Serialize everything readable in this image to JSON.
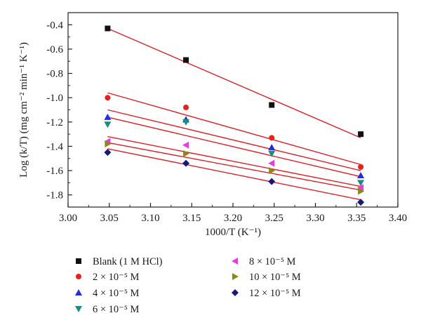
{
  "chart_data": {
    "type": "scatter",
    "xlabel": "1000/T (K⁻¹)",
    "ylabel": "Log (k/T) (mg cm⁻² min⁻¹ K⁻¹)",
    "xlim": [
      3.0,
      3.4
    ],
    "ylim": [
      -1.9,
      -0.3
    ],
    "x_ticks": [
      "3.00",
      "3.05",
      "3.10",
      "3.15",
      "3.20",
      "3.25",
      "3.30",
      "3.35",
      "3.40"
    ],
    "y_ticks": [
      "-0.4",
      "-0.6",
      "-0.8",
      "-1.0",
      "-1.2",
      "-1.4",
      "-1.6",
      "-1.8"
    ],
    "grid": false,
    "legend_position": "bottom",
    "fit_line_color": "#dd1f26",
    "series": [
      {
        "name": "Blank (1 M HCl)",
        "marker": "square",
        "color": "#111111",
        "x": [
          3.048,
          3.143,
          3.247,
          3.355
        ],
        "y": [
          -0.43,
          -0.69,
          -1.06,
          -1.3
        ],
        "fit": [
          [
            3.048,
            -0.43
          ],
          [
            3.355,
            -1.33
          ]
        ]
      },
      {
        "name": "2 × 10⁻⁵ M",
        "marker": "circle",
        "color": "#e8201c",
        "x": [
          3.048,
          3.143,
          3.247,
          3.355
        ],
        "y": [
          -1.0,
          -1.08,
          -1.33,
          -1.57
        ],
        "fit": [
          [
            3.048,
            -0.96
          ],
          [
            3.355,
            -1.55
          ]
        ]
      },
      {
        "name": "4 × 10⁻⁵ M",
        "marker": "triangle-up",
        "color": "#1f2ee0",
        "x": [
          3.048,
          3.143,
          3.247,
          3.355
        ],
        "y": [
          -1.16,
          -1.18,
          -1.41,
          -1.64
        ],
        "fit": [
          [
            3.048,
            -1.1
          ],
          [
            3.355,
            -1.6
          ]
        ]
      },
      {
        "name": "6 × 10⁻⁵ M",
        "marker": "triangle-down",
        "color": "#1a8a85",
        "x": [
          3.048,
          3.143,
          3.247,
          3.355
        ],
        "y": [
          -1.22,
          -1.2,
          -1.46,
          -1.7
        ],
        "fit": [
          [
            3.048,
            -1.16
          ],
          [
            3.355,
            -1.65
          ]
        ]
      },
      {
        "name": "8 × 10⁻⁵ M",
        "marker": "triangle-left",
        "color": "#e23fe0",
        "x": [
          3.048,
          3.143,
          3.247,
          3.355
        ],
        "y": [
          -1.36,
          -1.39,
          -1.54,
          -1.74
        ],
        "fit": [
          [
            3.048,
            -1.32
          ],
          [
            3.355,
            -1.73
          ]
        ]
      },
      {
        "name": "10 × 10⁻⁵ M",
        "marker": "triangle-right",
        "color": "#8a8a10",
        "x": [
          3.048,
          3.143,
          3.247,
          3.355
        ],
        "y": [
          -1.38,
          -1.46,
          -1.6,
          -1.77
        ],
        "fit": [
          [
            3.048,
            -1.37
          ],
          [
            3.355,
            -1.76
          ]
        ]
      },
      {
        "name": "12 × 10⁻⁵ M",
        "marker": "diamond",
        "color": "#141a78",
        "x": [
          3.048,
          3.143,
          3.247,
          3.355
        ],
        "y": [
          -1.45,
          -1.54,
          -1.69,
          -1.86
        ],
        "fit": [
          [
            3.048,
            -1.42
          ],
          [
            3.355,
            -1.84
          ]
        ]
      }
    ]
  }
}
